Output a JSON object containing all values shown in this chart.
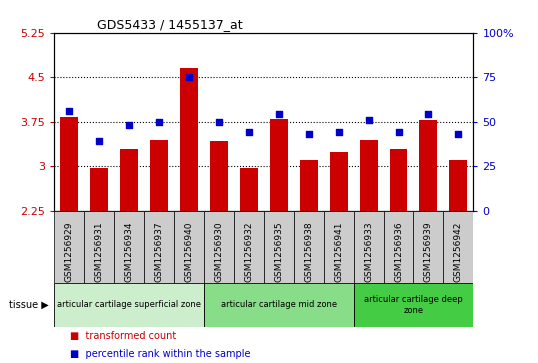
{
  "title": "GDS5433 / 1455137_at",
  "samples": [
    "GSM1256929",
    "GSM1256931",
    "GSM1256934",
    "GSM1256937",
    "GSM1256940",
    "GSM1256930",
    "GSM1256932",
    "GSM1256935",
    "GSM1256938",
    "GSM1256941",
    "GSM1256933",
    "GSM1256936",
    "GSM1256939",
    "GSM1256942"
  ],
  "bar_values": [
    3.82,
    2.96,
    3.28,
    3.44,
    4.65,
    3.42,
    2.97,
    3.8,
    3.1,
    3.24,
    3.44,
    3.28,
    3.78,
    3.1
  ],
  "percentile_values": [
    56,
    39,
    48,
    50,
    75,
    50,
    44,
    54,
    43,
    44,
    51,
    44,
    54,
    43
  ],
  "ylim_left": [
    2.25,
    5.25
  ],
  "ylim_right": [
    0,
    100
  ],
  "yticks_left": [
    2.25,
    3.0,
    3.75,
    4.5,
    5.25
  ],
  "yticks_left_labels": [
    "2.25",
    "3",
    "3.75",
    "4.5",
    "5.25"
  ],
  "yticks_right": [
    0,
    25,
    50,
    75,
    100
  ],
  "yticks_right_labels": [
    "0",
    "25",
    "50",
    "75",
    "100%"
  ],
  "bar_color": "#cc0000",
  "dot_color": "#0000cc",
  "xtick_bg_color": "#cccccc",
  "plot_bg_color": "#ffffff",
  "tissue_zones": [
    {
      "label": "articular cartilage superficial zone",
      "start": 0,
      "end": 5,
      "color": "#cceecc"
    },
    {
      "label": "articular cartilage mid zone",
      "start": 5,
      "end": 10,
      "color": "#88dd88"
    },
    {
      "label": "articular cartilage deep\nzone",
      "start": 10,
      "end": 14,
      "color": "#44cc44"
    }
  ],
  "legend_bar_label": "transformed count",
  "legend_dot_label": "percentile rank within the sample",
  "tissue_label": "tissue",
  "grid_color": "#000000",
  "bar_width": 0.6
}
